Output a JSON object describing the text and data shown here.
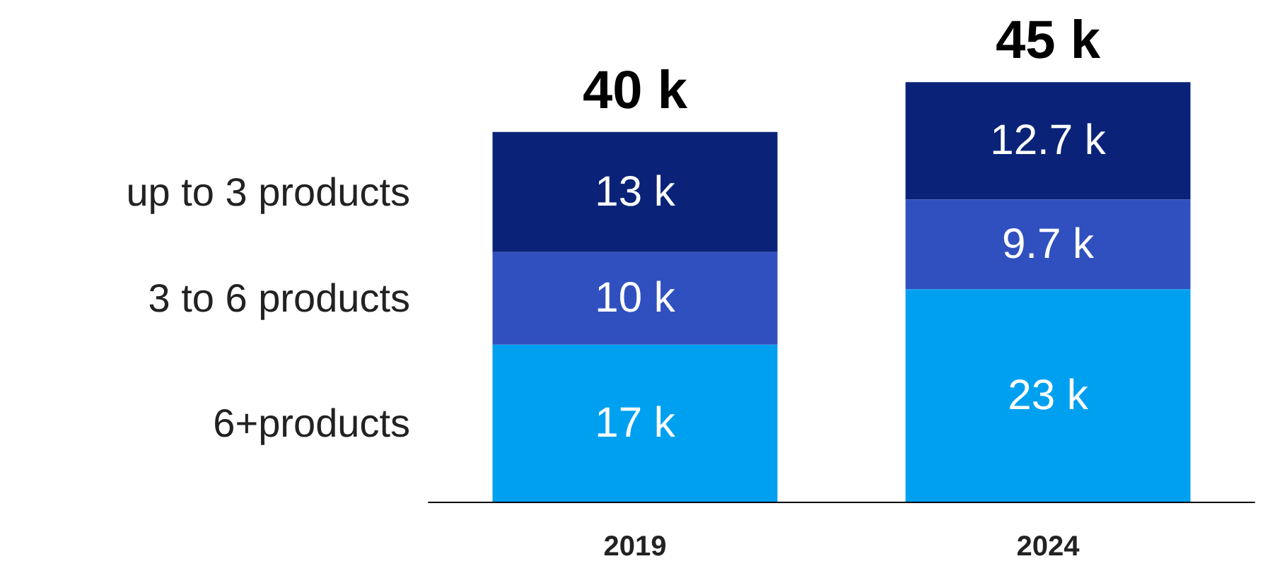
{
  "chart_data": {
    "type": "bar",
    "stacked": true,
    "categories": [
      "2019",
      "2024"
    ],
    "series": [
      {
        "name": "6+products",
        "color": "#00a0f0",
        "values": [
          17,
          23
        ],
        "value_labels": [
          "17 k",
          "23 k"
        ]
      },
      {
        "name": "3 to 6 products",
        "color": "#3050c0",
        "values": [
          10,
          9.7
        ],
        "value_labels": [
          "10 k",
          "9.7 k"
        ]
      },
      {
        "name": "up to 3 products",
        "color": "#0a2378",
        "values": [
          13,
          12.7
        ],
        "value_labels": [
          "13 k",
          "12.7 k"
        ]
      }
    ],
    "totals": [
      "40 k",
      "45 k"
    ],
    "legend": false
  }
}
